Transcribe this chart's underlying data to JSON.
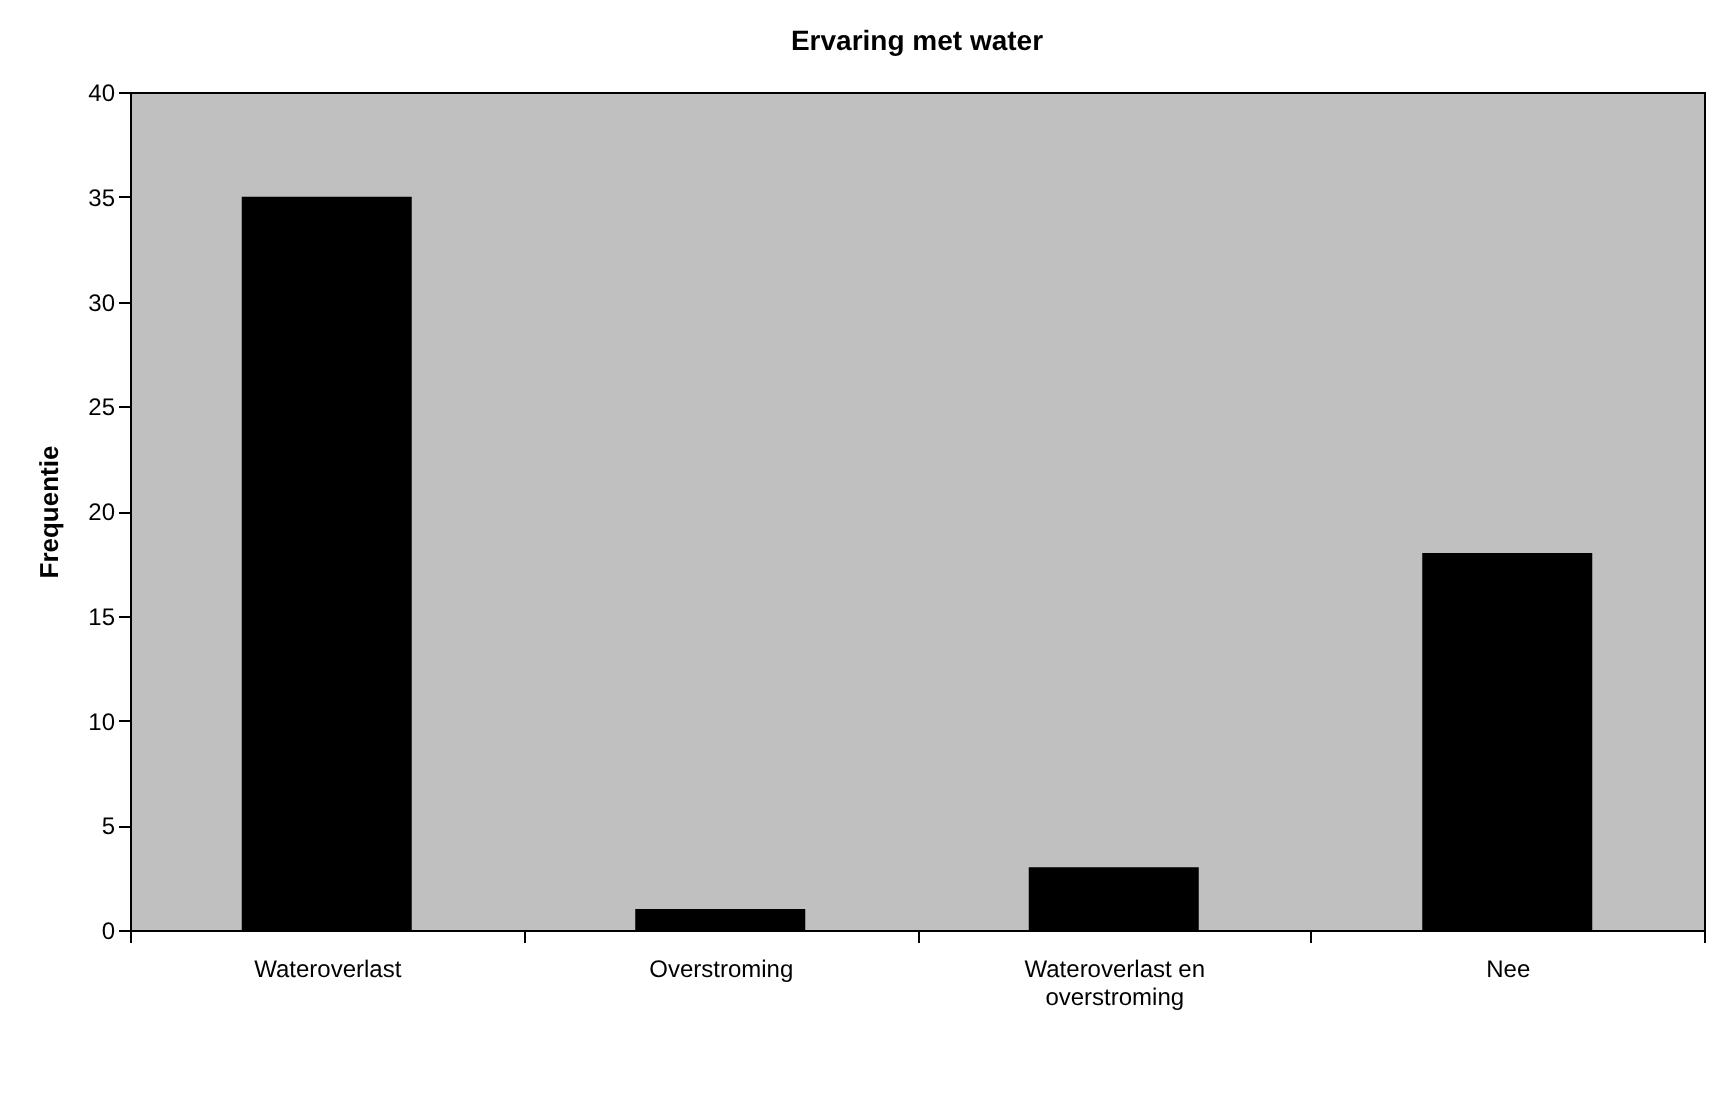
{
  "chart_data": {
    "type": "bar",
    "title": "Ervaring met water",
    "ylabel": "Frequentie",
    "categories": [
      "Wateroverlast",
      "Overstroming",
      "Wateroverlast en overstroming",
      "Nee"
    ],
    "values": [
      35,
      1,
      3,
      18
    ],
    "color": "#000000",
    "ylim": [
      0,
      40
    ],
    "yticks": [
      0,
      5,
      10,
      15,
      20,
      25,
      30,
      35,
      40
    ],
    "grid": false
  }
}
